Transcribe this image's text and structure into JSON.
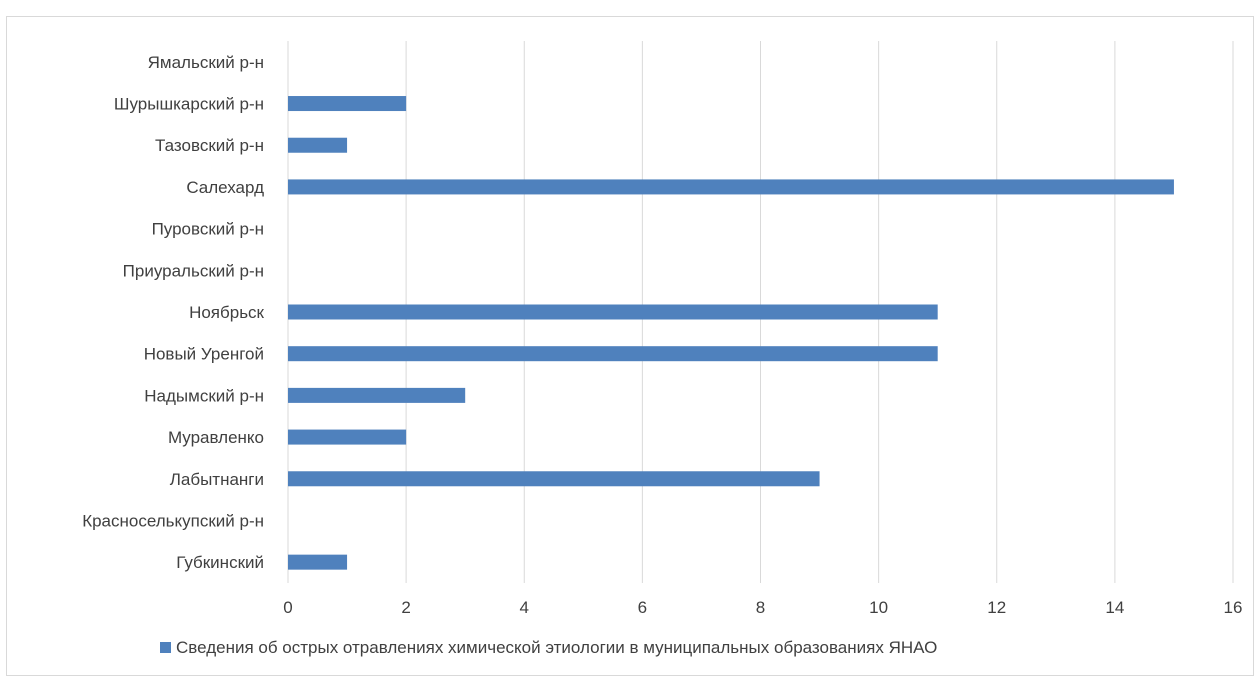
{
  "chart_data": {
    "type": "bar",
    "orientation": "horizontal",
    "categories": [
      "Губкинский",
      "Красноселькупский р-н",
      "Лабытнанги",
      "Муравленко",
      "Надымский р-н",
      "Новый Уренгой",
      "Ноябрьск",
      "Приуральский р-н",
      "Пуровский р-н",
      "Салехард",
      "Тазовский р-н",
      "Шурышкарский р-н",
      "Ямальский р-н"
    ],
    "series": [
      {
        "name": "Сведения об острых отравлениях химической этиологии в муниципальных образованиях ЯНАО",
        "color": "#4f81bd",
        "values": [
          1,
          0,
          9,
          2,
          3,
          11,
          11,
          0,
          0,
          15,
          1,
          2,
          0
        ]
      }
    ],
    "xlim": [
      0,
      16
    ],
    "xticks": [
      "0",
      "2",
      "4",
      "6",
      "8",
      "10",
      "12",
      "14",
      "16"
    ],
    "title": "",
    "xlabel": "",
    "ylabel": "",
    "grid": "vertical",
    "legend_position": "bottom",
    "colors": {
      "bar": "#4f81bd",
      "grid": "#d9d9d9",
      "text": "#404040"
    }
  }
}
